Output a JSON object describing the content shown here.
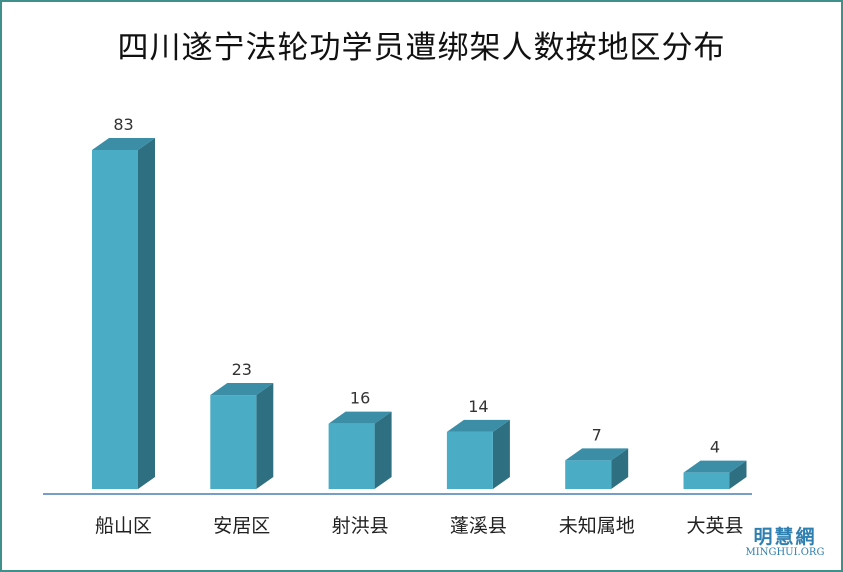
{
  "chart_data": {
    "type": "bar",
    "title": "四川遂宁法轮功学员遭绑架人数按地区分布",
    "categories": [
      "船山区",
      "安居区",
      "射洪县",
      "蓬溪县",
      "未知属地",
      "大英县"
    ],
    "values": [
      83,
      23,
      16,
      14,
      7,
      4
    ],
    "ylim": [
      0,
      83
    ],
    "grid": false,
    "legend": "none",
    "bar_style": "3d",
    "colors": {
      "front": "#4bacc6",
      "top": "#3b8ea6",
      "side": "#2e6f82",
      "axis": "#4a7fb5"
    }
  },
  "watermark": {
    "cn": "明慧網",
    "en": "MINGHUI.ORG"
  }
}
